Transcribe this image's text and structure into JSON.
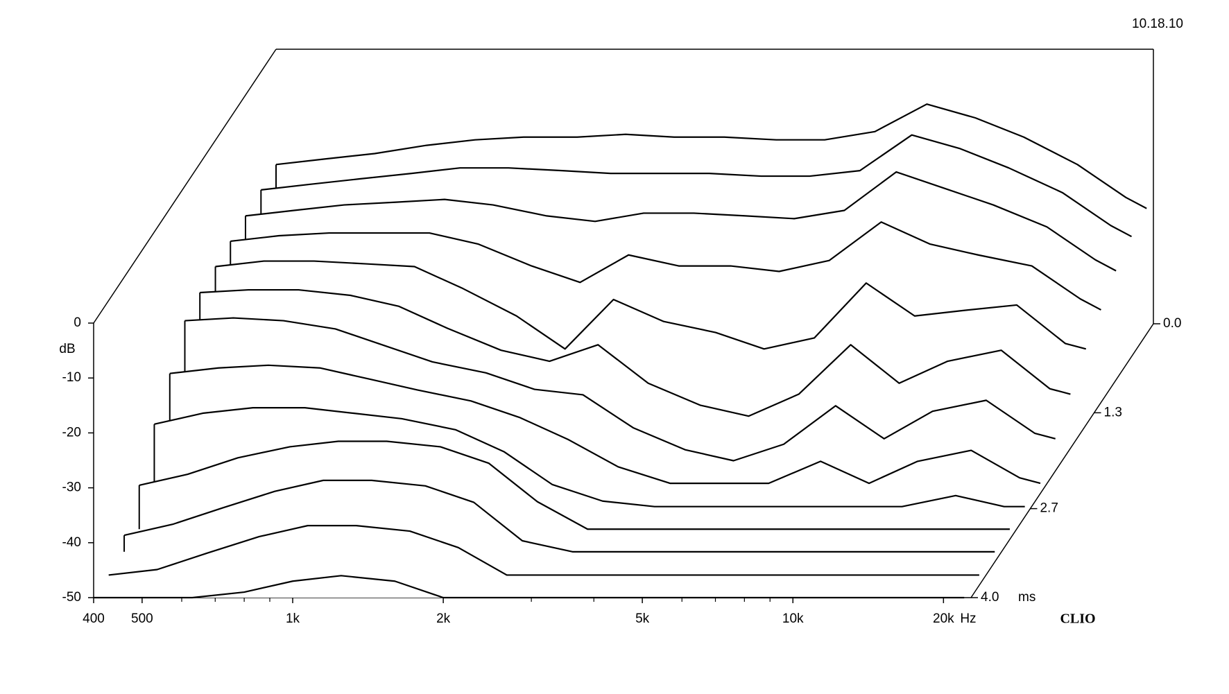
{
  "chart_data": {
    "type": "waterfall",
    "date": "10.18.10",
    "brand": "CLIO",
    "ylabel": "dB",
    "x_unit": "Hz",
    "z_unit": "ms",
    "xlim": [
      400,
      22700
    ],
    "xlog": true,
    "xticks": [
      400,
      500,
      {
        "value": 1000,
        "label": "1k"
      },
      {
        "value": 2000,
        "label": "2k"
      },
      {
        "value": 5000,
        "label": "5k"
      },
      {
        "value": 10000,
        "label": "10k"
      },
      {
        "value": 20000,
        "label": "20k"
      }
    ],
    "xminorticks": [
      600,
      700,
      800,
      900,
      3000,
      4000,
      6000,
      7000,
      8000,
      9000
    ],
    "ylim": [
      -50,
      0
    ],
    "yticks": [
      0,
      -10,
      -20,
      -30,
      -40,
      -50
    ],
    "zlim": [
      0,
      4
    ],
    "zticks": [
      {
        "value": 0,
        "label": "0.0"
      },
      1.3,
      2.7,
      {
        "value": 4,
        "label": "4.0"
      }
    ],
    "color": "#000000",
    "frequencies": [
      400,
      500,
      630,
      800,
      1000,
      1250,
      1600,
      2000,
      2500,
      3150,
      4000,
      5000,
      6300,
      8000,
      10000,
      12500,
      16000,
      20000,
      22000
    ],
    "slices": [
      {
        "t": 0,
        "values": [
          -21,
          -20,
          -19,
          -17.5,
          -16.5,
          -16,
          -16,
          -15.5,
          -16,
          -16,
          -16.5,
          -16.5,
          -15,
          -10,
          -12.5,
          -16,
          -21,
          -27,
          -29
        ]
      },
      {
        "t": 0.33,
        "values": [
          -21.5,
          -20.5,
          -19.5,
          -18.5,
          -17.5,
          -17.5,
          -18,
          -18.5,
          -18.5,
          -18.5,
          -19,
          -19,
          -18,
          -11.5,
          -14,
          -17.5,
          -22,
          -28,
          -30
        ]
      },
      {
        "t": 0.67,
        "values": [
          -22,
          -21,
          -20,
          -19.5,
          -19,
          -20,
          -22,
          -23,
          -21.5,
          -21.5,
          -22,
          -22.5,
          -21,
          -14,
          -17,
          -20,
          -24,
          -30,
          -32
        ]
      },
      {
        "t": 1,
        "values": [
          -22.5,
          -21.5,
          -21,
          -21,
          -21,
          -23,
          -27,
          -30,
          -25,
          -27,
          -27,
          -28,
          -26,
          -19,
          -23,
          -25,
          -27,
          -33,
          -35
        ]
      },
      {
        "t": 1.33,
        "values": [
          -23,
          -22,
          -22,
          -22.5,
          -23,
          -27,
          -32,
          -38,
          -29,
          -33,
          -35,
          -38,
          -36,
          -26,
          -32,
          -31,
          -30,
          -37,
          -38
        ]
      },
      {
        "t": 1.67,
        "values": [
          -23.5,
          -23,
          -23,
          -24,
          -26,
          -30,
          -34,
          -36,
          -33,
          -40,
          -44,
          -46,
          -42,
          -33,
          -40,
          -36,
          -34,
          -41,
          -42
        ]
      },
      {
        "t": 2,
        "values": [
          -24.5,
          -24,
          -24.5,
          -26,
          -29,
          -32,
          -34,
          -37,
          -38,
          -44,
          -48,
          -50,
          -47,
          -40,
          -46,
          -41,
          -39,
          -45,
          -46
        ]
      },
      {
        "t": 2.33,
        "values": [
          -30,
          -29,
          -28.5,
          -29,
          -31,
          -33,
          -35,
          -38,
          -42,
          -47,
          -50,
          -50,
          -50,
          -46,
          -50,
          -46,
          -44,
          -49,
          -50
        ]
      },
      {
        "t": 2.67,
        "values": [
          -35,
          -33,
          -32,
          -32,
          -33,
          -34,
          -36,
          -40,
          -46,
          -49,
          -50,
          -50,
          -50,
          -50,
          -50,
          -50,
          -48,
          -50,
          -50
        ]
      },
      {
        "t": 3,
        "values": [
          -42,
          -40,
          -37,
          -35,
          -34,
          -34,
          -35,
          -38,
          -45,
          -50,
          -50,
          -50,
          -50,
          -50,
          -50,
          -50,
          -50,
          -50,
          -50
        ]
      },
      {
        "t": 3.33,
        "values": [
          -47,
          -45,
          -42,
          -39,
          -37,
          -37,
          -38,
          -41,
          -48,
          -50,
          -50,
          -50,
          -50,
          -50,
          -50,
          -50,
          -50,
          -50,
          -50
        ]
      },
      {
        "t": 3.67,
        "values": [
          -50,
          -49,
          -46,
          -43,
          -41,
          -41,
          -42,
          -45,
          -50,
          -50,
          -50,
          -50,
          -50,
          -50,
          -50,
          -50,
          -50,
          -50,
          -50
        ]
      },
      {
        "t": 4,
        "values": [
          -50,
          -50,
          -50,
          -49,
          -47,
          -46,
          -47,
          -50,
          -50,
          -50,
          -50,
          -50,
          -50,
          -50,
          -50,
          -50,
          -50,
          -50,
          -50
        ]
      }
    ]
  }
}
